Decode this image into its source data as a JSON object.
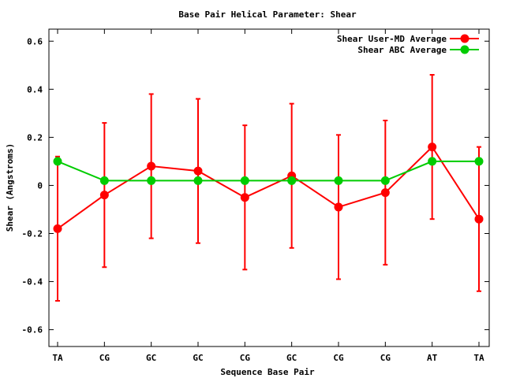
{
  "chart_data": {
    "type": "line",
    "title": "Base Pair Helical Parameter: Shear",
    "xlabel": "Sequence Base Pair",
    "ylabel": "Shear (Angstroms)",
    "categories": [
      "TA",
      "CG",
      "GC",
      "GC",
      "CG",
      "GC",
      "CG",
      "CG",
      "AT",
      "TA"
    ],
    "ylim": [
      -0.67,
      0.65
    ],
    "yticks": [
      -0.6,
      -0.4,
      -0.2,
      0,
      0.2,
      0.4,
      0.6
    ],
    "ytick_labels": [
      "-0.6",
      "-0.4",
      "-0.2",
      "0",
      "0.2",
      "0.4",
      "0.6"
    ],
    "legend_position": "top-right",
    "grid": false,
    "series": [
      {
        "name": "Shear User-MD Average",
        "color": "#ff0000",
        "values": [
          -0.18,
          -0.04,
          0.08,
          0.06,
          -0.05,
          0.04,
          -0.09,
          -0.03,
          0.16,
          -0.14
        ],
        "error_low": [
          -0.48,
          -0.34,
          -0.22,
          -0.24,
          -0.35,
          -0.26,
          -0.39,
          -0.33,
          -0.14,
          -0.44
        ],
        "error_high": [
          0.12,
          0.26,
          0.38,
          0.36,
          0.25,
          0.34,
          0.21,
          0.27,
          0.46,
          0.16
        ]
      },
      {
        "name": "Shear ABC Average",
        "color": "#00cc00",
        "values": [
          0.1,
          0.02,
          0.02,
          0.02,
          0.02,
          0.02,
          0.02,
          0.02,
          0.1,
          0.1
        ]
      }
    ]
  }
}
